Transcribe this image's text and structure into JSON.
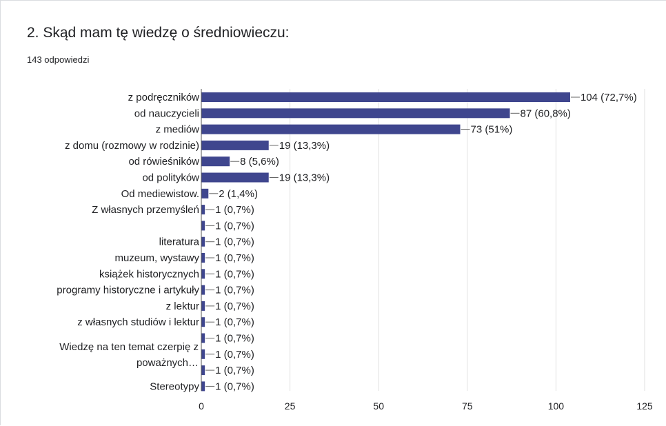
{
  "question": {
    "title": "2. Skąd mam tę wiedzę o średniowieczu:",
    "response_count": "143 odpowiedzi"
  },
  "colors": {
    "bar": "#3f468e",
    "grid": "#e0e0e0",
    "axis": "#555555",
    "text": "#202124"
  },
  "chart_data": {
    "type": "bar",
    "orientation": "horizontal",
    "categories": [
      "z podręczników",
      "od nauczycieli",
      "z mediów",
      "z domu (rozmowy w rodzinie)",
      "od rówieśników",
      "od polityków",
      "Od mediewistow.",
      "Z własnych przemyśleń",
      "",
      "literatura",
      "muzeum, wystawy",
      "książek historycznych",
      "programy historyczne i artykuły",
      "z lektur",
      "z własnych studiów i lektur",
      "",
      "",
      "",
      "Stereotypy"
    ],
    "values": [
      104,
      87,
      73,
      19,
      8,
      19,
      2,
      1,
      1,
      1,
      1,
      1,
      1,
      1,
      1,
      1,
      1,
      1,
      1
    ],
    "data_labels": [
      "104 (72,7%)",
      "87 (60,8%)",
      "73 (51%)",
      "19 (13,3%)",
      "8 (5,6%)",
      "19 (13,3%)",
      "2 (1,4%)",
      "1 (0,7%)",
      "1 (0,7%)",
      "1 (0,7%)",
      "1 (0,7%)",
      "1 (0,7%)",
      "1 (0,7%)",
      "1 (0,7%)",
      "1 (0,7%)",
      "1 (0,7%)",
      "1 (0,7%)",
      "1 (0,7%)",
      "1 (0,7%)"
    ],
    "group_label": {
      "lines": [
        "Wiedzę na ten temat czerpię z",
        "poważnych…"
      ],
      "spans_rows": [
        15,
        17
      ]
    },
    "xlim": [
      0,
      125
    ],
    "xticks": [
      0,
      25,
      50,
      75,
      100,
      125
    ],
    "grid": true
  }
}
